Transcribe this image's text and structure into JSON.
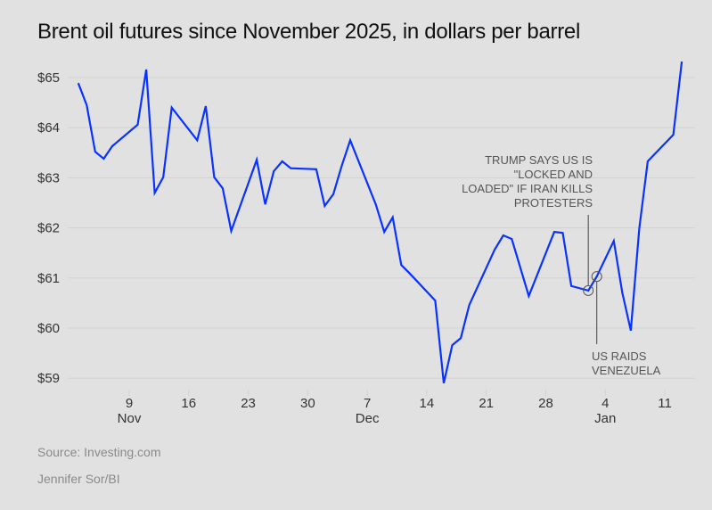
{
  "title": "Brent oil futures since November 2025, in dollars per barrel",
  "source": "Source: Investing.com",
  "credit": "Jennifer Sor/BI",
  "colors": {
    "line": "#0a32ff",
    "grid": "#d2d2d2",
    "background": "#e1e1e1",
    "annotation": "#555555"
  },
  "chart_data": {
    "type": "line",
    "title": "Brent oil futures since November 2025, in dollars per barrel",
    "xlabel": "",
    "ylabel": "",
    "ylim": [
      59,
      65.3
    ],
    "yticks": [
      59,
      60,
      61,
      62,
      63,
      64,
      65
    ],
    "ytick_labels": [
      "$59",
      "$60",
      "$61",
      "$62",
      "$63",
      "$64",
      "$65"
    ],
    "xticks": [
      {
        "day": 0,
        "label": "9",
        "month": "Nov"
      },
      {
        "day": 7,
        "label": "16",
        "month": ""
      },
      {
        "day": 14,
        "label": "23",
        "month": ""
      },
      {
        "day": 21,
        "label": "30",
        "month": ""
      },
      {
        "day": 28,
        "label": "7",
        "month": "Dec"
      },
      {
        "day": 35,
        "label": "14",
        "month": ""
      },
      {
        "day": 42,
        "label": "21",
        "month": ""
      },
      {
        "day": 49,
        "label": "28",
        "month": ""
      },
      {
        "day": 56,
        "label": "4",
        "month": "Jan"
      },
      {
        "day": 63,
        "label": "11",
        "month": ""
      }
    ],
    "x_note": "day = days since Nov 9, 2025",
    "grid": true,
    "series": [
      {
        "name": "Brent",
        "points": [
          [
            -6,
            64.89
          ],
          [
            -5,
            64.45
          ],
          [
            -4,
            63.52
          ],
          [
            -3,
            63.38
          ],
          [
            -2,
            63.63
          ],
          [
            1,
            64.06
          ],
          [
            2,
            65.16
          ],
          [
            3,
            62.7
          ],
          [
            4,
            63.01
          ],
          [
            5,
            64.4
          ],
          [
            8,
            63.75
          ],
          [
            9,
            64.43
          ],
          [
            10,
            63.01
          ],
          [
            11,
            62.79
          ],
          [
            12,
            61.94
          ],
          [
            15,
            63.36
          ],
          [
            16,
            62.47
          ],
          [
            17,
            63.13
          ],
          [
            18,
            63.33
          ],
          [
            19,
            63.19
          ],
          [
            22,
            63.17
          ],
          [
            23,
            62.44
          ],
          [
            24,
            62.67
          ],
          [
            25,
            63.24
          ],
          [
            26,
            63.75
          ],
          [
            29,
            62.47
          ],
          [
            30,
            61.92
          ],
          [
            31,
            62.21
          ],
          [
            32,
            61.26
          ],
          [
            33,
            61.09
          ],
          [
            36,
            60.55
          ],
          [
            37,
            58.9
          ],
          [
            38,
            59.66
          ],
          [
            39,
            59.8
          ],
          [
            40,
            60.46
          ],
          [
            43,
            61.57
          ],
          [
            44,
            61.85
          ],
          [
            45,
            61.78
          ],
          [
            47,
            60.64
          ],
          [
            50,
            61.92
          ],
          [
            51,
            61.9
          ],
          [
            52,
            60.84
          ],
          [
            54,
            60.75
          ],
          [
            55,
            61.03
          ],
          [
            57,
            61.74
          ],
          [
            58,
            60.71
          ],
          [
            59,
            59.95
          ],
          [
            60,
            61.99
          ],
          [
            61,
            63.33
          ],
          [
            64,
            63.86
          ],
          [
            65,
            65.32
          ]
        ]
      }
    ],
    "annotations": [
      {
        "name": "trump-annotation",
        "lines": [
          "TRUMP SAYS US IS",
          "\"LOCKED AND",
          "LOADED\" IF IRAN KILLS",
          "PROTESTERS"
        ],
        "day": 54,
        "value": 60.75,
        "position": "above"
      },
      {
        "name": "venezuela-annotation",
        "lines": [
          "US RAIDS",
          "VENEZUELA"
        ],
        "day": 55,
        "value": 61.03,
        "position": "below"
      }
    ]
  }
}
